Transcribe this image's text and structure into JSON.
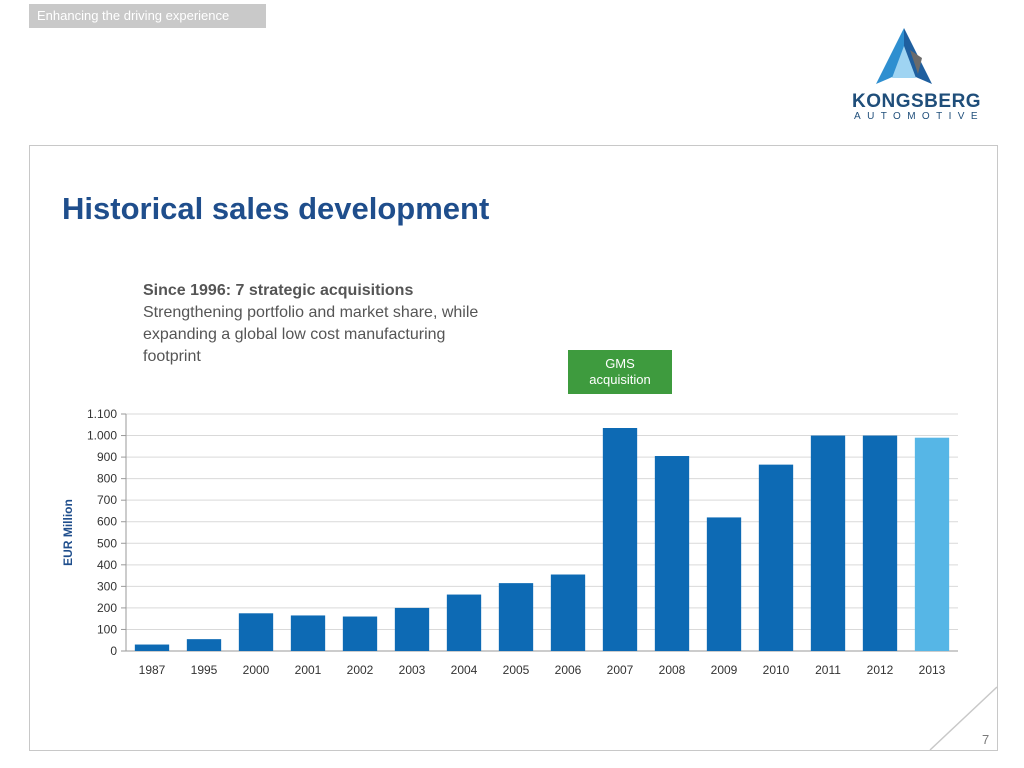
{
  "header": {
    "tagline": "Enhancing the driving experience"
  },
  "logo": {
    "name": "KONGSBERG",
    "subtitle": "AUTOMOTIVE"
  },
  "slide": {
    "title": "Historical sales development",
    "subtitle_bold": "Since 1996: 7 strategic acquisitions",
    "subtitle_text": "Strengthening portfolio and market share, while expanding a global low cost manufacturing footprint",
    "badge_line1": "GMS",
    "badge_line2": "acquisition",
    "page_number": "7"
  },
  "colors": {
    "bar_primary": "#0d6ab4",
    "bar_highlight": "#56b6e6",
    "badge": "#3e9b3e",
    "title": "#1f4e8c"
  },
  "chart_data": {
    "type": "bar",
    "categories": [
      "1987",
      "1995",
      "2000",
      "2001",
      "2002",
      "2003",
      "2004",
      "2005",
      "2006",
      "2007",
      "2008",
      "2009",
      "2010",
      "2011",
      "2012",
      "2013"
    ],
    "values": [
      30,
      55,
      175,
      165,
      160,
      200,
      262,
      315,
      355,
      1035,
      905,
      620,
      865,
      1000,
      1000,
      990
    ],
    "highlight_index": 15,
    "ylabel": "EUR Million",
    "xlabel": "",
    "ylim": [
      0,
      1100
    ],
    "yticks": [
      0,
      100,
      200,
      300,
      400,
      500,
      600,
      700,
      800,
      900,
      1000,
      1100
    ],
    "ytick_labels": [
      "0",
      "100",
      "200",
      "300",
      "400",
      "500",
      "600",
      "700",
      "800",
      "900",
      "1.000",
      "1.100"
    ],
    "grid": true
  }
}
